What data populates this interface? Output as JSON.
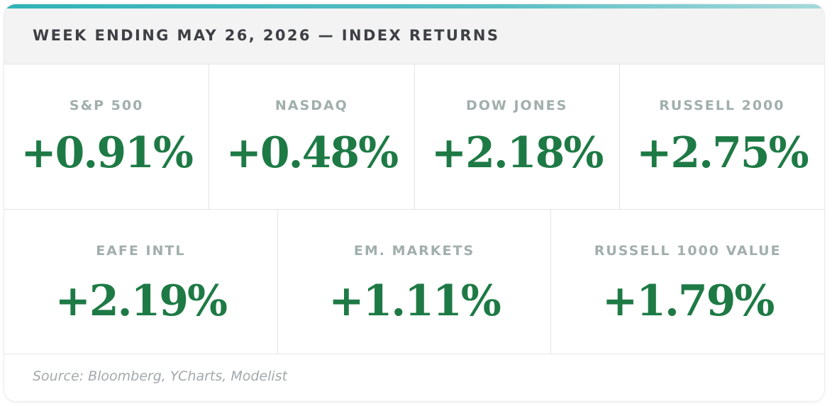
{
  "header": {
    "title": "WEEK ENDING MAY 26, 2026 — INDEX RETURNS"
  },
  "indices": {
    "row1": [
      {
        "label": "S&P 500",
        "value": "+0.91%"
      },
      {
        "label": "NASDAQ",
        "value": "+0.48%"
      },
      {
        "label": "DOW JONES",
        "value": "+2.18%"
      },
      {
        "label": "RUSSELL 2000",
        "value": "+2.75%"
      }
    ],
    "row2": [
      {
        "label": "EAFE INTL",
        "value": "+2.19%"
      },
      {
        "label": "EM. MARKETS",
        "value": "+1.11%"
      },
      {
        "label": "RUSSELL 1000 VALUE",
        "value": "+1.79%"
      }
    ]
  },
  "footer": {
    "source": "Source: Bloomberg, YCharts, Modelist"
  },
  "colors": {
    "accent": "#2fb3b8",
    "positive": "#1e7a45",
    "label": "#a1afac",
    "header_bg": "#f3f3f3"
  }
}
